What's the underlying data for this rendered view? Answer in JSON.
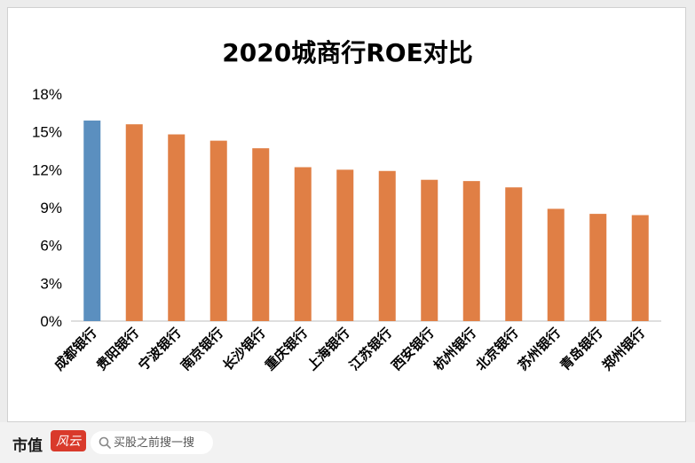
{
  "chart_data": {
    "type": "bar",
    "title": "2020城商行ROE对比",
    "categories": [
      "成都银行",
      "贵阳银行",
      "宁波银行",
      "南京银行",
      "长沙银行",
      "重庆银行",
      "上海银行",
      "江苏银行",
      "西安银行",
      "杭州银行",
      "北京银行",
      "苏州银行",
      "青岛银行",
      "郑州银行"
    ],
    "values": [
      15.9,
      15.6,
      14.8,
      14.3,
      13.7,
      12.2,
      12.0,
      11.9,
      11.2,
      11.1,
      10.6,
      8.9,
      8.5,
      8.4
    ],
    "highlight_index": 0,
    "ylim": [
      0,
      18
    ],
    "yticks": [
      "0%",
      "3%",
      "6%",
      "9%",
      "12%",
      "15%",
      "18%"
    ],
    "ytick_values": [
      0,
      3,
      6,
      9,
      12,
      15,
      18
    ],
    "xlabel": "",
    "ylabel": "",
    "grid": false,
    "colors": {
      "default": "#e07f45",
      "highlight": "#5b8fbf"
    }
  },
  "footer": {
    "logo_text": "市值",
    "logo_mark": "风云",
    "search_placeholder": "买股之前搜一搜"
  }
}
